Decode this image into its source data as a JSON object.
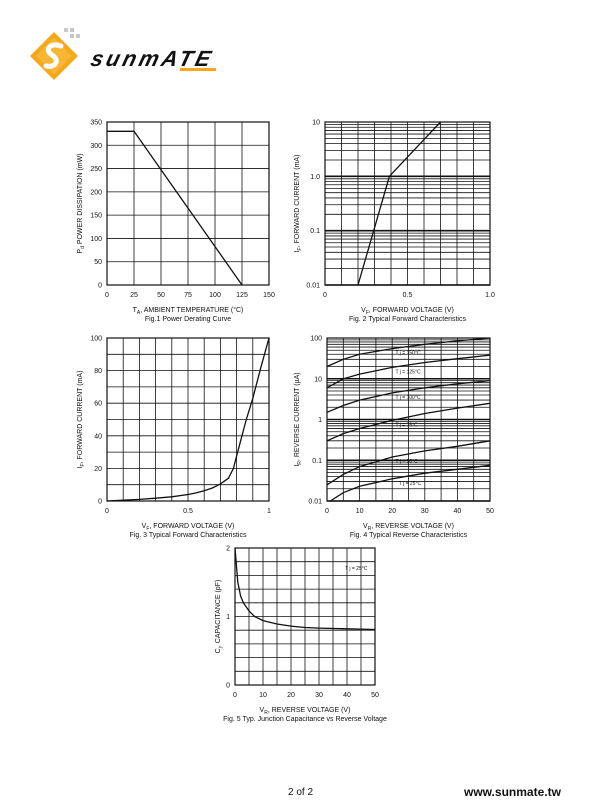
{
  "brand": {
    "name": "sunmATE",
    "colors": {
      "orange": "#f5a81c",
      "dark": "#1a1a1a"
    }
  },
  "footer": {
    "page": "2 of 2",
    "url": "www.sunmate.tw"
  },
  "chart_data": [
    {
      "type": "line",
      "title": "Fig.1  Power Derating Curve",
      "xlabel": "T",
      "xlabel_sub": "A",
      "xlabel_rest": ", AMBIENT TEMPERATURE (°C)",
      "ylabel": "P",
      "ylabel_sub": "d",
      "ylabel_rest": "  POWER DISSIPATION (mW)",
      "xlim": [
        0,
        150
      ],
      "ylim": [
        0,
        350
      ],
      "xticks": [
        "0",
        "25",
        "50",
        "75",
        "100",
        "125",
        "150"
      ],
      "yticks": [
        "0",
        "50",
        "100",
        "150",
        "200",
        "250",
        "300",
        "350"
      ],
      "grid": true,
      "series": [
        {
          "x": [
            0,
            25,
            125
          ],
          "y": [
            330,
            330,
            0
          ]
        }
      ]
    },
    {
      "type": "line",
      "title": "Fig. 2 Typical Forward Characteristics",
      "xlabel": "V",
      "xlabel_sub": "F",
      "xlabel_rest": ", FORWARD VOLTAGE (V)",
      "ylabel": "I",
      "ylabel_sub": "F",
      "ylabel_rest": ", FORWARD CURRENT (mA)",
      "xlim": [
        0,
        1.0
      ],
      "ylim": [
        0.01,
        10
      ],
      "yscale": "log",
      "xticks": [
        "0",
        "0.5",
        "1.0"
      ],
      "yticks": [
        "0.01",
        "0.1",
        "1.0",
        "10"
      ],
      "grid": true,
      "series": [
        {
          "x": [
            0.2,
            0.39,
            0.7
          ],
          "y": [
            0.01,
            1.0,
            10
          ]
        }
      ]
    },
    {
      "type": "line",
      "title": "Fig. 3 Typical Forward Characteristics",
      "xlabel": "V",
      "xlabel_sub": "F",
      "xlabel_rest": ", FORWARD VOLTAGE (V)",
      "ylabel": "I",
      "ylabel_sub": "F",
      "ylabel_rest": ", FORWARD CURRENT (mA)",
      "xlim": [
        0,
        1
      ],
      "ylim": [
        0,
        100
      ],
      "xticks": [
        "0",
        "0.5",
        "1"
      ],
      "yticks": [
        "0",
        "20",
        "40",
        "60",
        "80",
        "100"
      ],
      "grid": true,
      "series": [
        {
          "x": [
            0,
            0.1,
            0.2,
            0.3,
            0.4,
            0.5,
            0.55,
            0.6,
            0.65,
            0.7,
            0.75,
            0.78,
            0.82,
            0.86,
            0.9,
            0.95,
            1.0
          ],
          "y": [
            0,
            0.5,
            1,
            1.7,
            2.6,
            4,
            5,
            6.3,
            8,
            10.5,
            14,
            20,
            35,
            50,
            63,
            82,
            100
          ]
        }
      ]
    },
    {
      "type": "line",
      "title": "Fig. 4 Typical Reverse Characteristics",
      "xlabel": "V",
      "xlabel_sub": "R",
      "xlabel_rest": ", REVERSE VOLTAGE (V)",
      "ylabel": "I",
      "ylabel_sub": "R",
      "ylabel_rest": ", REVERSE CURRENT (µA)",
      "xlim": [
        0,
        50
      ],
      "ylim": [
        0.01,
        100
      ],
      "yscale": "log",
      "xticks": [
        "0",
        "10",
        "20",
        "30",
        "40",
        "50"
      ],
      "yticks": [
        "0.01",
        "0.1",
        "1",
        "10",
        "100"
      ],
      "grid": true,
      "series": [
        {
          "name": "T j = 150°C",
          "x": [
            0,
            5,
            10,
            20,
            30,
            40,
            50
          ],
          "y": [
            20,
            30,
            40,
            55,
            70,
            85,
            100
          ]
        },
        {
          "name": "T j = 125°C",
          "x": [
            0,
            5,
            10,
            20,
            30,
            40,
            50
          ],
          "y": [
            6,
            10,
            13,
            19,
            25,
            31,
            38
          ]
        },
        {
          "name": "T j = 100°C",
          "x": [
            0,
            5,
            10,
            20,
            30,
            40,
            50
          ],
          "y": [
            1.5,
            2.2,
            3,
            4.5,
            6,
            7.5,
            9
          ]
        },
        {
          "name": "T j = 75°C",
          "x": [
            0,
            5,
            10,
            20,
            30,
            40,
            50
          ],
          "y": [
            0.3,
            0.45,
            0.6,
            0.95,
            1.4,
            1.9,
            2.5
          ]
        },
        {
          "name": "T j = 50°C",
          "x": [
            0,
            5,
            10,
            20,
            30,
            40,
            50
          ],
          "y": [
            0.025,
            0.045,
            0.07,
            0.12,
            0.17,
            0.22,
            0.3
          ]
        },
        {
          "name": "T j = 25°C",
          "x": [
            1,
            5,
            10,
            20,
            30,
            40,
            50
          ],
          "y": [
            0.01,
            0.016,
            0.023,
            0.035,
            0.048,
            0.06,
            0.075
          ]
        }
      ]
    },
    {
      "type": "line",
      "title": "Fig. 5 Typ. Junction Capacitance vs Reverse Voltage",
      "xlabel": "V",
      "xlabel_sub": "R",
      "xlabel_rest": ", REVERSE VOLTAGE (V)",
      "ylabel": "C",
      "ylabel_sub": "j",
      "ylabel_rest": ", CAPACITANCE (pF)",
      "xlim": [
        0,
        50
      ],
      "ylim": [
        0,
        2
      ],
      "xticks": [
        "0",
        "10",
        "20",
        "30",
        "40",
        "50"
      ],
      "yticks": [
        "0",
        "1",
        "2"
      ],
      "grid": true,
      "annotation": "T j = 25°C",
      "series": [
        {
          "x": [
            0,
            1,
            2,
            3,
            5,
            7,
            10,
            15,
            20,
            25,
            30,
            40,
            50
          ],
          "y": [
            2.0,
            1.5,
            1.3,
            1.2,
            1.08,
            1.0,
            0.94,
            0.89,
            0.86,
            0.84,
            0.83,
            0.82,
            0.81
          ]
        }
      ]
    }
  ]
}
